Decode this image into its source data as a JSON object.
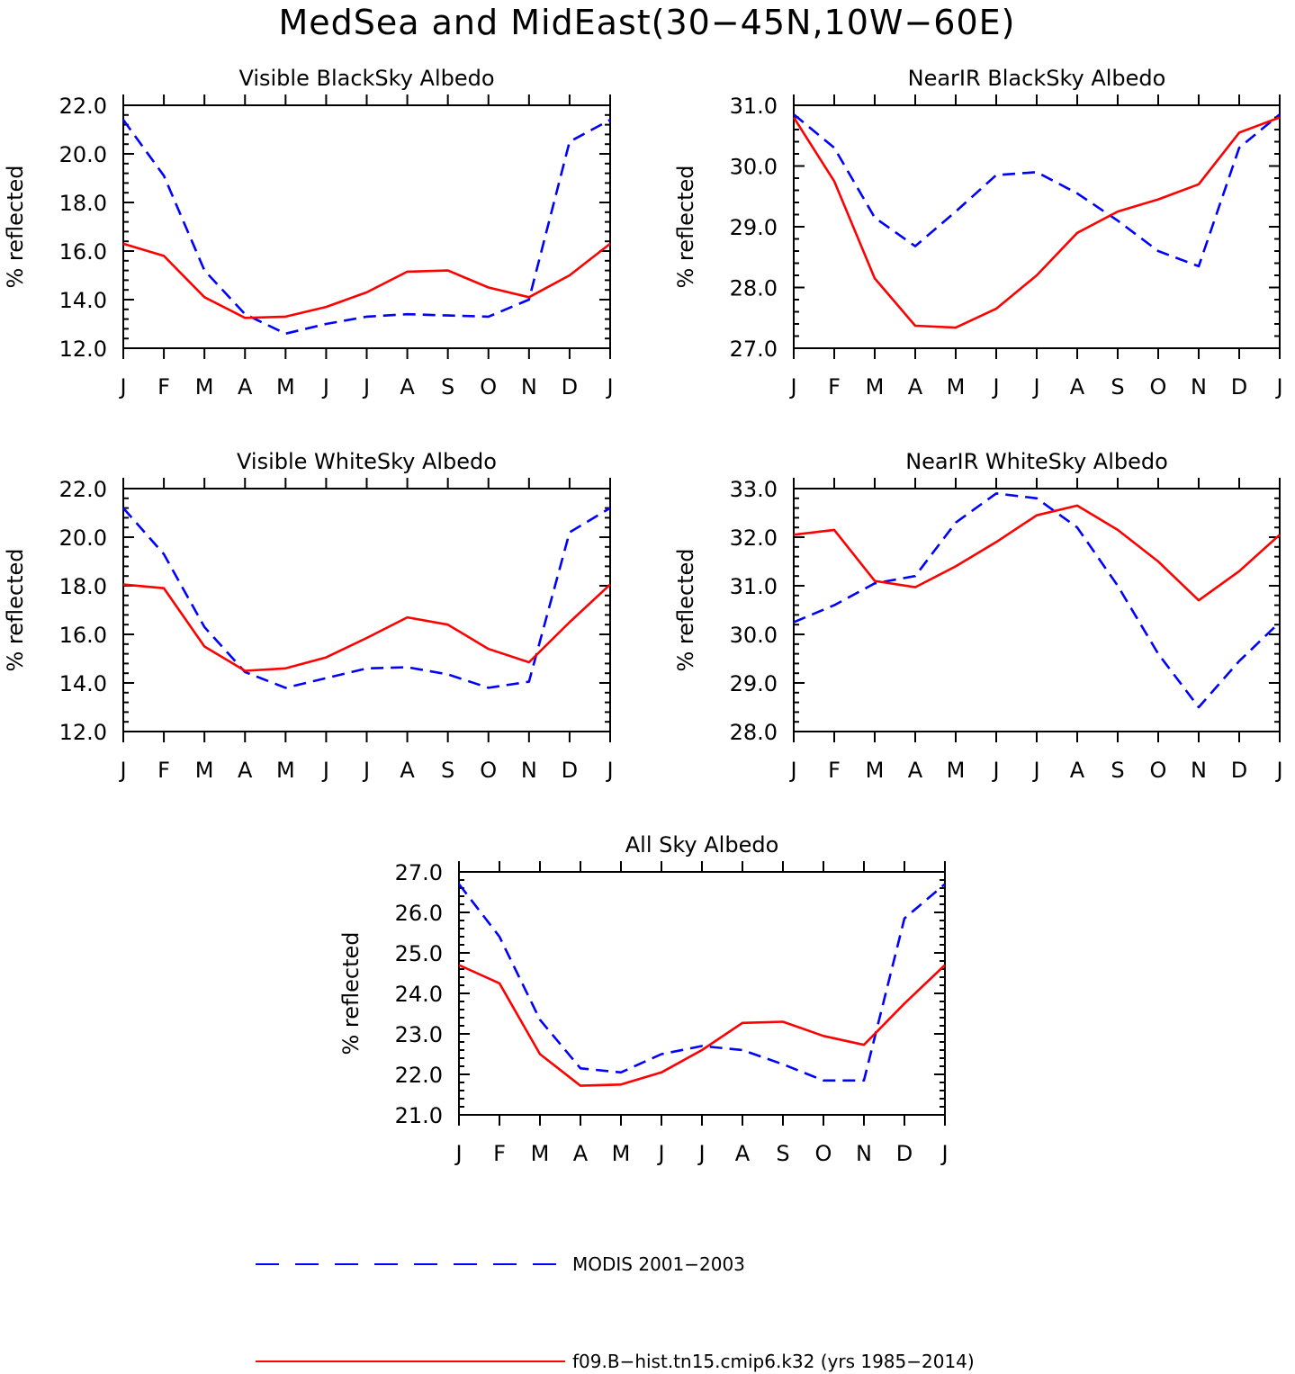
{
  "title": "MedSea and MidEast(30−45N,10W−60E)",
  "colors": {
    "modis": "#0000ff",
    "model": "#ff0000",
    "axis": "#000000"
  },
  "legend": {
    "entries": [
      {
        "key": "modis",
        "label": "MODIS 2001−2003",
        "style": "dashed"
      },
      {
        "key": "model",
        "label": "f09.B−hist.tn15.cmip6.k32 (yrs 1985−2014)",
        "style": "solid"
      }
    ]
  },
  "chart_data": [
    {
      "type": "line",
      "title": "Visible BlackSky Albedo",
      "ylabel": "% reflected",
      "categories": [
        "J",
        "F",
        "M",
        "A",
        "M",
        "J",
        "J",
        "A",
        "S",
        "O",
        "N",
        "D",
        "J"
      ],
      "yticks": [
        "12.0",
        "14.0",
        "16.0",
        "18.0",
        "20.0",
        "22.0"
      ],
      "ylim": [
        12,
        22
      ],
      "series": [
        {
          "name": "MODIS 2001−2003",
          "key": "modis",
          "values": [
            21.4,
            19.1,
            15.2,
            13.4,
            12.6,
            13.0,
            13.3,
            13.4,
            13.35,
            13.3,
            14.0,
            20.5,
            21.4
          ]
        },
        {
          "name": "f09.B−hist.tn15.cmip6.k32 (yrs 1985−2014)",
          "key": "model",
          "values": [
            16.3,
            15.8,
            14.1,
            13.25,
            13.3,
            13.7,
            14.3,
            15.15,
            15.2,
            14.5,
            14.1,
            15.0,
            16.3
          ]
        }
      ]
    },
    {
      "type": "line",
      "title": "NearIR BlackSky Albedo",
      "ylabel": "% reflected",
      "categories": [
        "J",
        "F",
        "M",
        "A",
        "M",
        "J",
        "J",
        "A",
        "S",
        "O",
        "N",
        "D",
        "J"
      ],
      "yticks": [
        "27.0",
        "28.0",
        "29.0",
        "30.0",
        "31.0"
      ],
      "ylim": [
        27,
        31
      ],
      "series": [
        {
          "name": "MODIS 2001−2003",
          "key": "modis",
          "values": [
            30.85,
            30.3,
            29.15,
            28.68,
            29.25,
            29.85,
            29.9,
            29.55,
            29.1,
            28.6,
            28.35,
            30.3,
            30.85
          ]
        },
        {
          "name": "f09.B−hist.tn15.cmip6.k32 (yrs 1985−2014)",
          "key": "model",
          "values": [
            30.8,
            29.75,
            28.15,
            27.37,
            27.34,
            27.65,
            28.2,
            28.9,
            29.25,
            29.45,
            29.7,
            30.55,
            30.8
          ]
        }
      ]
    },
    {
      "type": "line",
      "title": "Visible WhiteSky Albedo",
      "ylabel": "% reflected",
      "categories": [
        "J",
        "F",
        "M",
        "A",
        "M",
        "J",
        "J",
        "A",
        "S",
        "O",
        "N",
        "D",
        "J"
      ],
      "yticks": [
        "12.0",
        "14.0",
        "16.0",
        "18.0",
        "20.0",
        "22.0"
      ],
      "ylim": [
        12,
        22
      ],
      "series": [
        {
          "name": "MODIS 2001−2003",
          "key": "modis",
          "values": [
            21.2,
            19.3,
            16.3,
            14.45,
            13.8,
            14.2,
            14.6,
            14.65,
            14.35,
            13.8,
            14.05,
            20.2,
            21.2
          ]
        },
        {
          "name": "f09.B−hist.tn15.cmip6.k32 (yrs 1985−2014)",
          "key": "model",
          "values": [
            18.05,
            17.9,
            15.5,
            14.5,
            14.6,
            15.05,
            15.85,
            16.7,
            16.4,
            15.4,
            14.85,
            16.5,
            18.05
          ]
        }
      ]
    },
    {
      "type": "line",
      "title": "NearIR WhiteSky Albedo",
      "ylabel": "% reflected",
      "categories": [
        "J",
        "F",
        "M",
        "A",
        "M",
        "J",
        "J",
        "A",
        "S",
        "O",
        "N",
        "D",
        "J"
      ],
      "yticks": [
        "28.0",
        "29.0",
        "30.0",
        "31.0",
        "32.0",
        "33.0"
      ],
      "ylim": [
        28,
        33
      ],
      "series": [
        {
          "name": "MODIS 2001−2003",
          "key": "modis",
          "values": [
            30.25,
            30.6,
            31.05,
            31.2,
            32.3,
            32.9,
            32.8,
            32.2,
            31.0,
            29.6,
            28.5,
            29.45,
            30.25
          ]
        },
        {
          "name": "f09.B−hist.tn15.cmip6.k32 (yrs 1985−2014)",
          "key": "model",
          "values": [
            32.05,
            32.15,
            31.1,
            30.97,
            31.4,
            31.9,
            32.45,
            32.65,
            32.15,
            31.5,
            30.7,
            31.3,
            32.05
          ]
        }
      ]
    },
    {
      "type": "line",
      "title": "All Sky Albedo",
      "ylabel": "% reflected",
      "categories": [
        "J",
        "F",
        "M",
        "A",
        "M",
        "J",
        "J",
        "A",
        "S",
        "O",
        "N",
        "D",
        "J"
      ],
      "yticks": [
        "21.0",
        "22.0",
        "23.0",
        "24.0",
        "25.0",
        "26.0",
        "27.0"
      ],
      "ylim": [
        21,
        27
      ],
      "series": [
        {
          "name": "MODIS 2001−2003",
          "key": "modis",
          "values": [
            26.7,
            25.4,
            23.35,
            22.15,
            22.05,
            22.5,
            22.7,
            22.6,
            22.25,
            21.85,
            21.85,
            25.85,
            26.7
          ]
        },
        {
          "name": "f09.B−hist.tn15.cmip6.k32 (yrs 1985−2014)",
          "key": "model",
          "values": [
            24.7,
            24.25,
            22.5,
            21.72,
            21.75,
            22.05,
            22.6,
            23.27,
            23.3,
            22.95,
            22.73,
            23.75,
            24.7
          ]
        }
      ]
    }
  ]
}
